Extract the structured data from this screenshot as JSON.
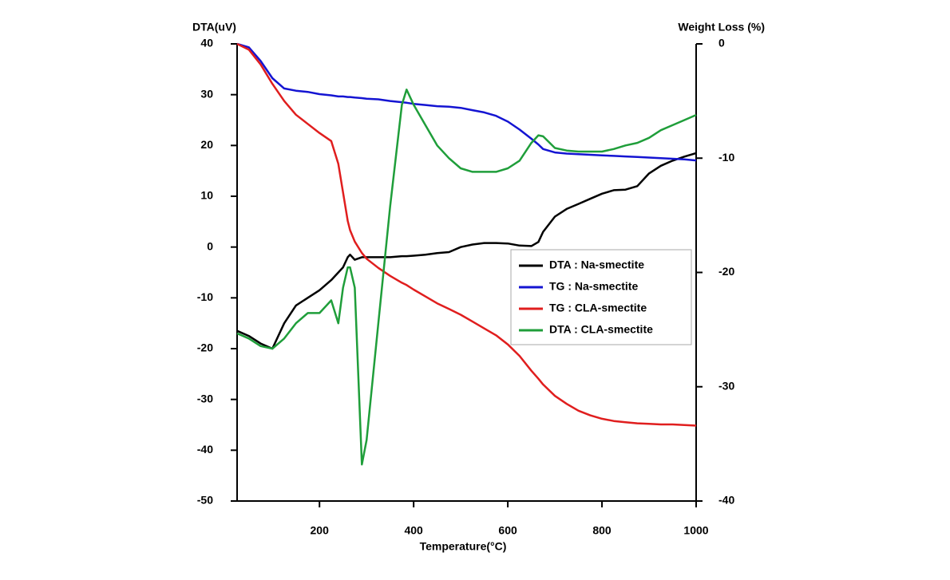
{
  "chart_data": {
    "type": "line",
    "xlabel": "Temperature(°C)",
    "ylabel": "DTA(uV)",
    "y2label": "Weight Loss (%)",
    "x": [
      25,
      50,
      75,
      100,
      125,
      150,
      175,
      200,
      225,
      240,
      250,
      260,
      265,
      275,
      290,
      300,
      325,
      350,
      375,
      385,
      400,
      425,
      450,
      475,
      500,
      525,
      550,
      575,
      600,
      625,
      650,
      665,
      675,
      700,
      725,
      750,
      775,
      800,
      825,
      850,
      875,
      900,
      925,
      950,
      975,
      1000
    ],
    "series": [
      {
        "name": "DTA : Na-smectite",
        "color": "#000000",
        "axis": "y",
        "values": [
          -16.5,
          -17.5,
          -19,
          -20,
          -15,
          -11.5,
          -10,
          -8.5,
          -6.5,
          -5,
          -4,
          -2,
          -1.5,
          -2.5,
          -2,
          -2,
          -2,
          -2,
          -1.8,
          -1.8,
          -1.7,
          -1.5,
          -1.2,
          -1,
          0,
          0.5,
          0.8,
          0.8,
          0.7,
          0.3,
          0.2,
          1,
          3,
          6,
          7.5,
          8.5,
          9.5,
          10.5,
          11.2,
          11.3,
          12,
          14.5,
          16,
          17,
          17.8,
          18.5
        ]
      },
      {
        "name": "TG : Na-smectite",
        "color": "#1414d2",
        "axis": "y2",
        "values": [
          0,
          -0.3,
          -1.5,
          -3,
          -3.9,
          -4.1,
          -4.2,
          -4.4,
          -4.5,
          -4.6,
          -4.6,
          -4.65,
          -4.65,
          -4.7,
          -4.75,
          -4.8,
          -4.85,
          -5,
          -5.1,
          -5.15,
          -5.25,
          -5.35,
          -5.45,
          -5.5,
          -5.6,
          -5.8,
          -6,
          -6.3,
          -6.8,
          -7.5,
          -8.3,
          -8.8,
          -9.2,
          -9.5,
          -9.6,
          -9.65,
          -9.7,
          -9.75,
          -9.8,
          -9.85,
          -9.9,
          -9.95,
          -10,
          -10.05,
          -10.1,
          -10.2
        ]
      },
      {
        "name": "TG : CLA-smectite",
        "color": "#e01e1e",
        "axis": "y2",
        "values": [
          0,
          -0.5,
          -1.8,
          -3.5,
          -5,
          -6.2,
          -7,
          -7.8,
          -8.5,
          -10.5,
          -13,
          -15.5,
          -16.3,
          -17.3,
          -18.3,
          -18.8,
          -19.6,
          -20.3,
          -20.9,
          -21.1,
          -21.5,
          -22.1,
          -22.7,
          -23.2,
          -23.7,
          -24.3,
          -24.9,
          -25.5,
          -26.3,
          -27.3,
          -28.6,
          -29.3,
          -29.8,
          -30.8,
          -31.5,
          -32.1,
          -32.5,
          -32.8,
          -33,
          -33.1,
          -33.2,
          -33.25,
          -33.3,
          -33.3,
          -33.35,
          -33.4
        ]
      },
      {
        "name": "DTA : CLA-smectite",
        "color": "#1f9e3a",
        "axis": "y",
        "values": [
          -17,
          -18,
          -19.5,
          -20,
          -18,
          -15,
          -13,
          -13,
          -10.5,
          -15,
          -8,
          -4,
          -4,
          -8,
          -42.8,
          -38,
          -15,
          8,
          28,
          31,
          28,
          24,
          20,
          17.5,
          15.5,
          14.8,
          14.8,
          14.8,
          15.5,
          17,
          20.5,
          22,
          21.8,
          19.5,
          19,
          18.8,
          18.8,
          18.8,
          19.3,
          20,
          20.5,
          21.5,
          23,
          24,
          25,
          26
        ]
      }
    ],
    "xlim": [
      25,
      1000
    ],
    "xticks": [
      200,
      400,
      600,
      800,
      1000
    ],
    "ylim": [
      -50,
      40
    ],
    "yticks": [
      -50,
      -40,
      -30,
      -20,
      -10,
      0,
      10,
      20,
      30,
      40
    ],
    "y2lim": [
      -40,
      0
    ],
    "y2ticks": [
      -40,
      -30,
      -20,
      -10,
      0
    ],
    "legend": "right"
  }
}
